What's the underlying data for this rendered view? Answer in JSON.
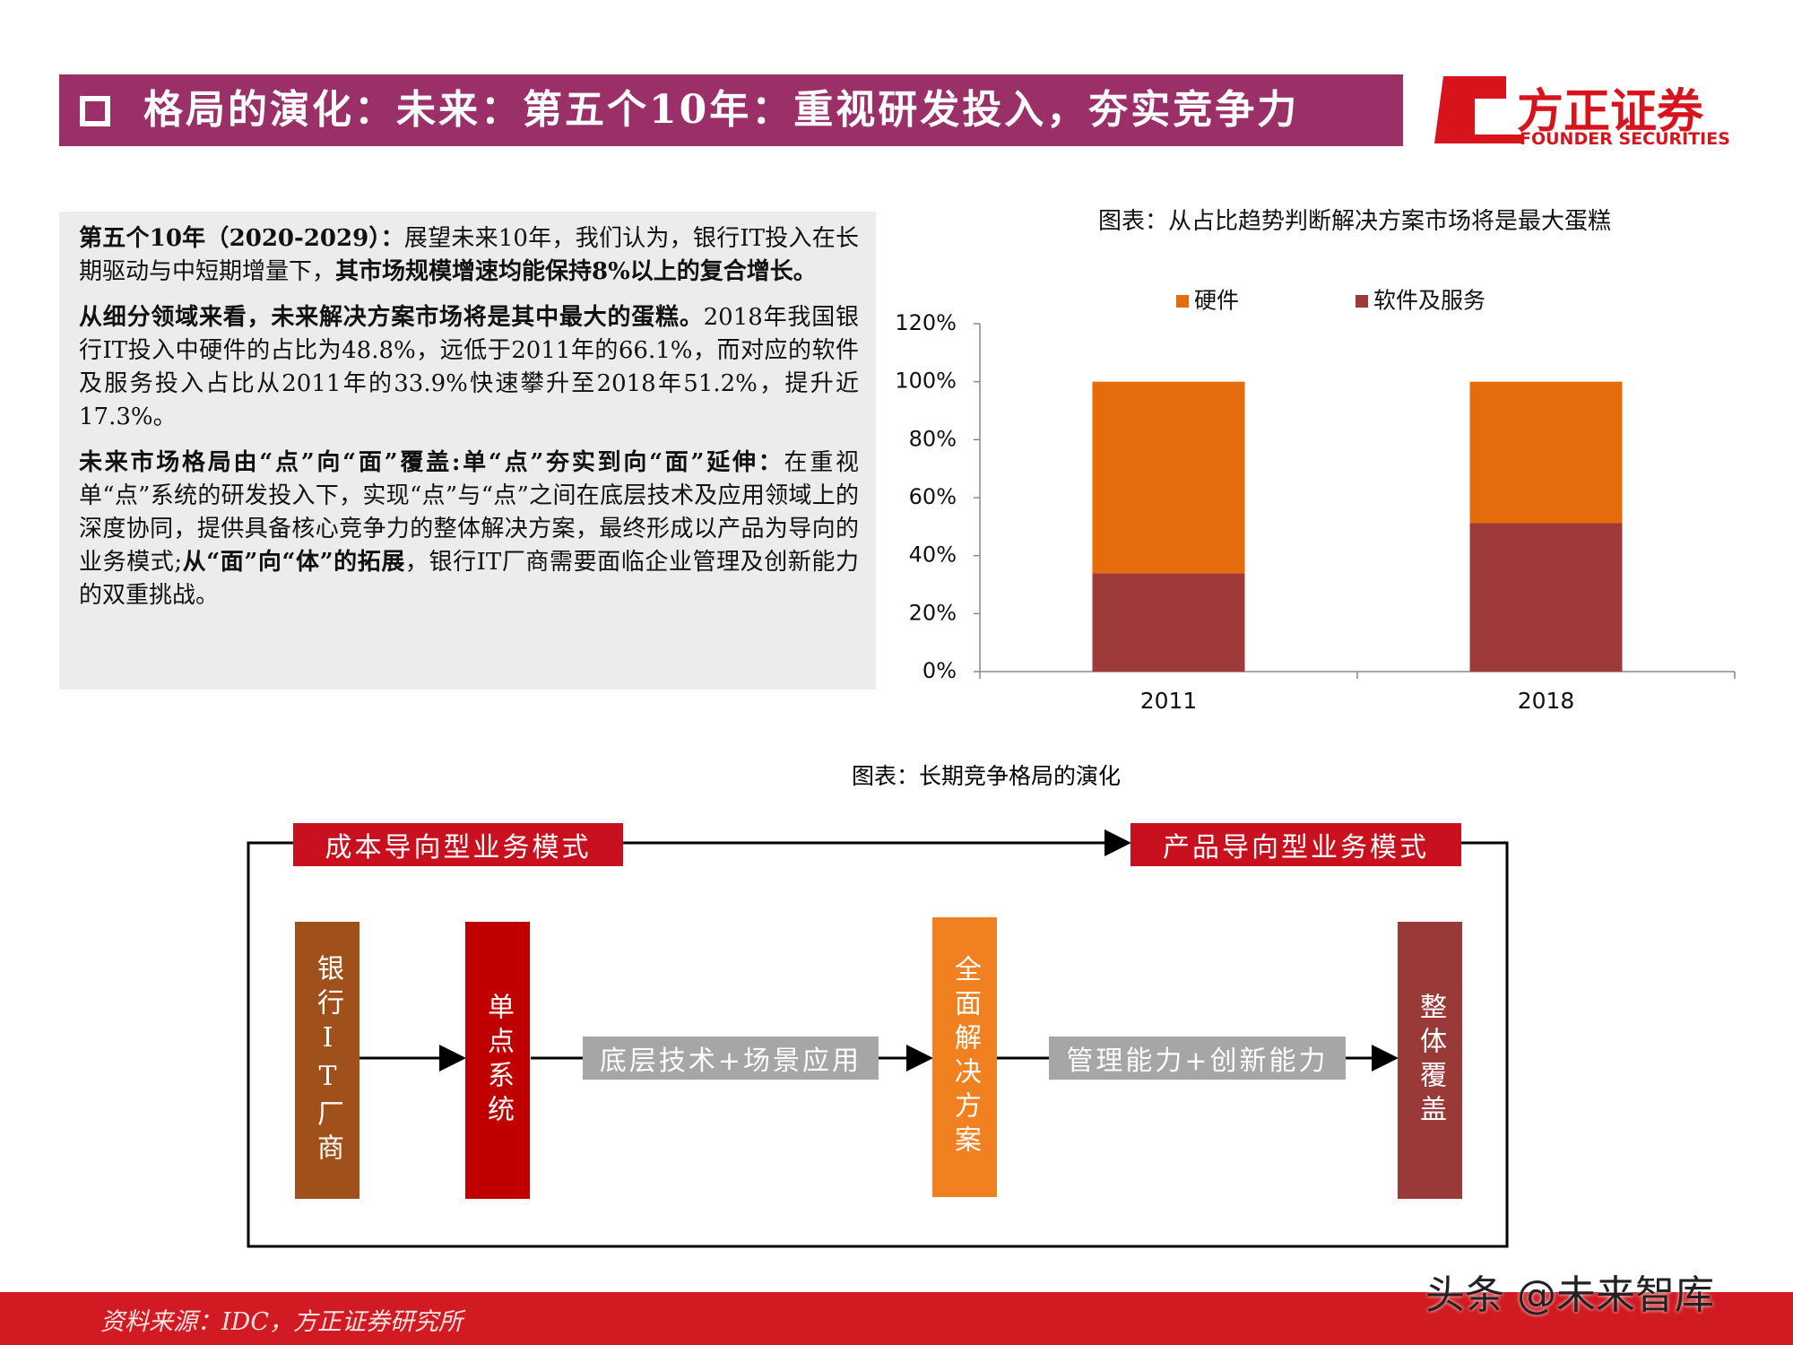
{
  "header": {
    "title": "格局的演化：未来：第五个10年：重视研发投入，夯实竞争力",
    "logo_cn": "方正证券",
    "logo_en": "FOUNDER SECURITIES"
  },
  "text_box": {
    "paragraphs": [
      [
        {
          "text": "第五个10年（2020-2029）：",
          "bold": true
        },
        {
          "text": "展望未来10年，我们认为，银行IT投入在长期驱动与中短期增量下，",
          "bold": false
        },
        {
          "text": "其市场规模增速均能保持8%以上的复合增长。",
          "bold": true
        }
      ],
      [
        {
          "text": "从细分领域来看，未来解决方案市场将是其中最大的蛋糕。",
          "bold": true
        },
        {
          "text": "2018年我国银行IT投入中硬件的占比为48.8%，远低于2011年的66.1%，而对应的软件及服务投入占比从2011年的33.9%快速攀升至2018年51.2%，提升近17.3%。",
          "bold": false
        }
      ],
      [
        {
          "text": "未来市场格局由“点”向“面”覆盖:单“点”夯实到向“面”延伸：",
          "bold": true
        },
        {
          "text": "在重视单“点”系统的研发投入下，实现“点”与“点”之间在底层技术及应用领域上的深度协同，提供具备核心竞争力的整体解决方案，最终形成以产品为导向的业务模式;",
          "bold": false
        },
        {
          "text": "从“面”向“体”的拓展",
          "bold": true
        },
        {
          "text": "，银行IT厂商需要面临企业管理及创新能力的双重挑战。",
          "bold": false
        }
      ]
    ]
  },
  "chart_data": {
    "type": "bar",
    "stacked": true,
    "title": "图表：从占比趋势判断解决方案市场将是最大蛋糕",
    "categories": [
      "2011",
      "2018"
    ],
    "series": [
      {
        "name": "硬件",
        "color": "#e46c0a",
        "values": [
          66.1,
          48.8
        ]
      },
      {
        "name": "软件及服务",
        "color": "#9e3a38",
        "values": [
          33.9,
          51.2
        ]
      }
    ],
    "ylim": [
      0,
      120
    ],
    "yticks": [
      {
        "value": 0,
        "label": "0%"
      },
      {
        "value": 20,
        "label": "20%"
      },
      {
        "value": 40,
        "label": "40%"
      },
      {
        "value": 60,
        "label": "60%"
      },
      {
        "value": 80,
        "label": "80%"
      },
      {
        "value": 100,
        "label": "100%"
      },
      {
        "value": 120,
        "label": "120%"
      }
    ],
    "grid": false,
    "legend": "top"
  },
  "diagram": {
    "title": "图表：长期竞争格局的演化",
    "top_labels": [
      "成本导向型业务模式",
      "产品导向型业务模式"
    ],
    "nodes": [
      "银行IT厂商",
      "单点系统",
      "全面解决方案",
      "整体覆盖"
    ],
    "edges": [
      "底层技术+场景应用",
      "管理能力+创新能力"
    ]
  },
  "footer": {
    "source": "资料来源：IDC，方正证券研究所",
    "watermark": "头条 @未来智库"
  }
}
